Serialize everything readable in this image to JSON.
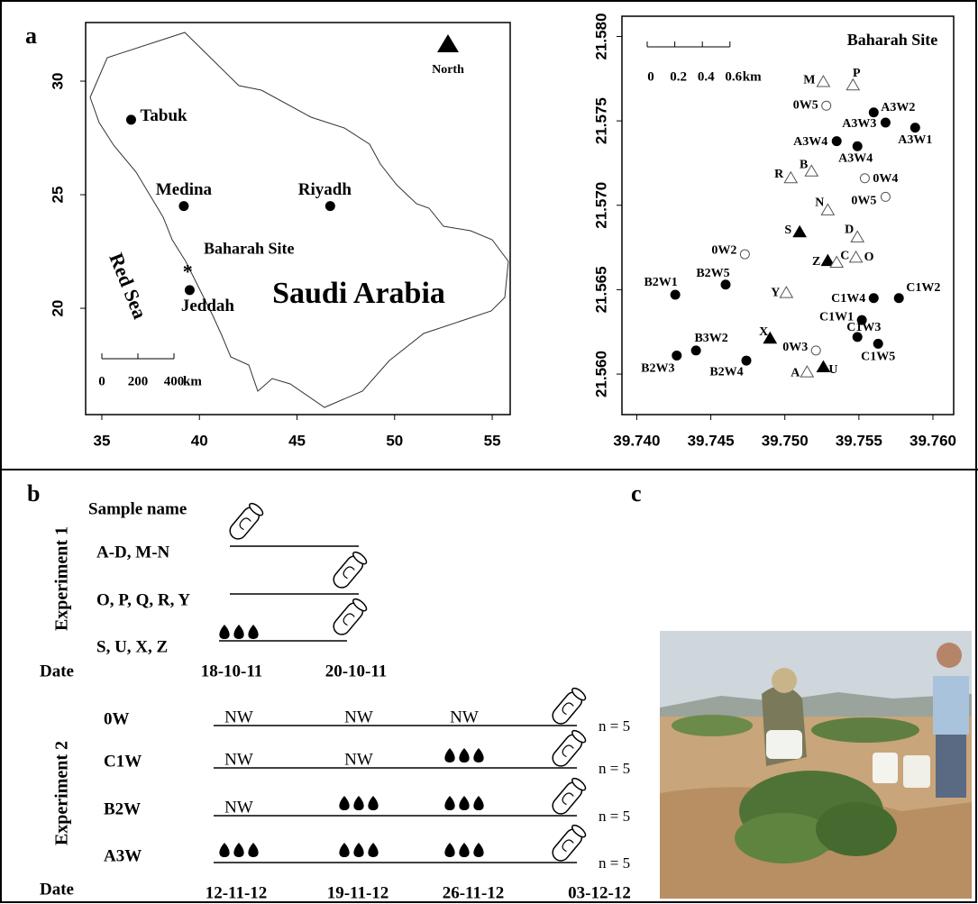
{
  "panel_labels": [
    "a",
    "b",
    "c"
  ],
  "map": {
    "xlim": [
      34.17,
      55.92
    ],
    "ylim": [
      15.32,
      32.58
    ],
    "xticks": [
      35,
      40,
      45,
      50,
      55
    ],
    "yticks": [
      20,
      25,
      30
    ],
    "places": [
      {
        "label": "Tabuk",
        "x": 36.5,
        "y": 28.3
      },
      {
        "label": "Medina",
        "x": 39.2,
        "y": 24.5
      },
      {
        "label": "Riyadh",
        "x": 46.7,
        "y": 24.5
      },
      {
        "label": "Jeddah",
        "x": 39.5,
        "y": 20.8
      }
    ],
    "site": {
      "label": "Baharah Site",
      "marker": "*",
      "x": 39.4,
      "y": 21.7
    },
    "country": "Saudi Arabia",
    "sea": "Red Sea",
    "north": "North",
    "scale_bar": {
      "ticks": [
        0,
        200,
        400
      ],
      "unit": "km"
    }
  },
  "site_plot": {
    "title": "Baharah Site",
    "xlim": [
      39.739,
      39.7614
    ],
    "ylim": [
      21.5576,
      21.5812
    ],
    "xticks": [
      {
        "value": 39.74,
        "label": "39.740"
      },
      39.745,
      {
        "value": 39.75,
        "label": "39.750"
      },
      39.755,
      {
        "value": 39.76,
        "label": "39.760"
      }
    ],
    "yticks": [
      {
        "value": 21.56,
        "label": "21.560"
      },
      21.565,
      {
        "value": 21.57,
        "label": "21.570"
      },
      21.575,
      {
        "value": 21.58,
        "label": "21.580"
      }
    ],
    "scale_bar": {
      "ticks": [
        0,
        0.2,
        0.4,
        0.6
      ],
      "unit": "km"
    },
    "points": [
      {
        "label": "M",
        "x": 39.7526,
        "y": 21.5773,
        "marker": "open-triangle"
      },
      {
        "label": "P",
        "x": 39.7546,
        "y": 21.5771,
        "marker": "open-triangle"
      },
      {
        "label": "0W5",
        "x": 39.7528,
        "y": 21.5759,
        "marker": "open-circle"
      },
      {
        "label": "A3W2",
        "x": 39.756,
        "y": 21.5755,
        "marker": "filled-circle"
      },
      {
        "label": "A3W3",
        "x": 39.7568,
        "y": 21.5749,
        "marker": "filled-circle"
      },
      {
        "label": "A3W1",
        "x": 39.7588,
        "y": 21.5746,
        "marker": "filled-circle"
      },
      {
        "label": "A3W4",
        "x": 39.7535,
        "y": 21.5738,
        "marker": "filled-circle"
      },
      {
        "label": "A3W4",
        "x": 39.7549,
        "y": 21.5735,
        "marker": "filled-circle"
      },
      {
        "label": "R",
        "x": 39.7504,
        "y": 21.5716,
        "marker": "open-triangle"
      },
      {
        "label": "B",
        "x": 39.7518,
        "y": 21.572,
        "marker": "open-triangle"
      },
      {
        "label": "0W4",
        "x": 39.7554,
        "y": 21.5716,
        "marker": "open-circle"
      },
      {
        "label": "0W5",
        "x": 39.7568,
        "y": 21.5705,
        "marker": "open-circle"
      },
      {
        "label": "N",
        "x": 39.7529,
        "y": 21.5697,
        "marker": "open-triangle"
      },
      {
        "label": "S",
        "x": 39.751,
        "y": 21.5684,
        "marker": "filled-triangle"
      },
      {
        "label": "D",
        "x": 39.7549,
        "y": 21.5681,
        "marker": "open-triangle"
      },
      {
        "label": "0W2",
        "x": 39.7473,
        "y": 21.5671,
        "marker": "open-circle"
      },
      {
        "label": "Z",
        "x": 39.7529,
        "y": 21.5667,
        "marker": "filled-triangle"
      },
      {
        "label": "C",
        "x": 39.7535,
        "y": 21.5666,
        "marker": "open-triangle"
      },
      {
        "label": "O",
        "x": 39.7548,
        "y": 21.5669,
        "marker": "open-triangle"
      },
      {
        "label": "B2W1",
        "x": 39.7426,
        "y": 21.5647,
        "marker": "filled-circle"
      },
      {
        "label": "B2W5",
        "x": 39.746,
        "y": 21.5653,
        "marker": "filled-circle"
      },
      {
        "label": "Y",
        "x": 39.7501,
        "y": 21.5648,
        "marker": "open-triangle"
      },
      {
        "label": "C1W4",
        "x": 39.756,
        "y": 21.5645,
        "marker": "filled-circle"
      },
      {
        "label": "C1W2",
        "x": 39.7577,
        "y": 21.5645,
        "marker": "filled-circle"
      },
      {
        "label": "C1W1",
        "x": 39.7552,
        "y": 21.5632,
        "marker": "filled-circle"
      },
      {
        "label": "X",
        "x": 39.749,
        "y": 21.5621,
        "marker": "filled-triangle"
      },
      {
        "label": "C1W3",
        "x": 39.7549,
        "y": 21.5622,
        "marker": "filled-circle"
      },
      {
        "label": "0W3",
        "x": 39.7521,
        "y": 21.5614,
        "marker": "open-circle"
      },
      {
        "label": "C1W5",
        "x": 39.7563,
        "y": 21.5618,
        "marker": "filled-circle"
      },
      {
        "label": "B3W2",
        "x": 39.744,
        "y": 21.5614,
        "marker": "filled-circle"
      },
      {
        "label": "B2W3",
        "x": 39.7427,
        "y": 21.5611,
        "marker": "filled-circle"
      },
      {
        "label": "B2W4",
        "x": 39.7474,
        "y": 21.5608,
        "marker": "filled-circle"
      },
      {
        "label": "A",
        "x": 39.7515,
        "y": 21.5601,
        "marker": "open-triangle"
      },
      {
        "label": "U",
        "x": 39.7526,
        "y": 21.5604,
        "marker": "filled-triangle"
      }
    ]
  },
  "timeline": {
    "experiment_1": {
      "label": "Experiment 1",
      "header": "Sample name",
      "rows": [
        "A-D, M-N",
        "O, P, Q, R, Y",
        "S, U, X, Z"
      ],
      "date_label": "Date",
      "dates": [
        "18-10-11",
        "20-10-11"
      ]
    },
    "experiment_2": {
      "label": "Experiment 2",
      "rows": [
        {
          "name": "0W",
          "events": [
            "NW",
            "NW",
            "NW"
          ],
          "n": "n = 5"
        },
        {
          "name": "C1W",
          "events": [
            "NW",
            "NW",
            null
          ],
          "n": "n = 5"
        },
        {
          "name": "B2W",
          "events": [
            "NW",
            null,
            null
          ],
          "n": "n = 5"
        },
        {
          "name": "A3W",
          "events": [
            null,
            null,
            null
          ],
          "n": "n = 5"
        }
      ],
      "date_label": "Date",
      "dates": [
        "12-11-12",
        "19-11-12",
        "26-11-12",
        "03-12-12"
      ]
    }
  }
}
